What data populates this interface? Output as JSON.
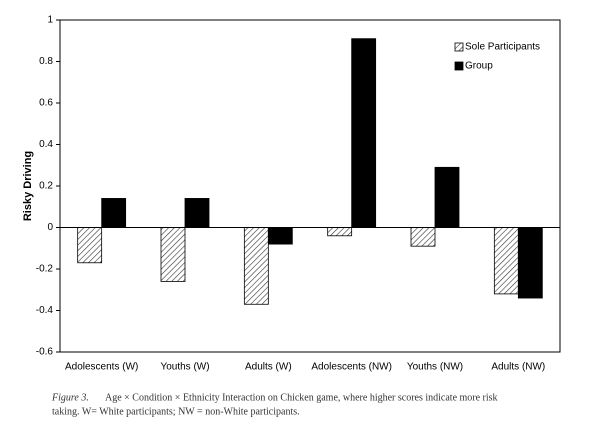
{
  "chart_data": {
    "type": "bar",
    "y_label": "Risky Driving",
    "categories": [
      "Adolescents (W)",
      "Youths (W)",
      "Adults (W)",
      "Adolescents (NW)",
      "Youths (NW)",
      "Adults (NW)"
    ],
    "series": [
      {
        "name": "Sole Participants",
        "color": "hatched",
        "values": [
          -0.17,
          -0.26,
          -0.37,
          -0.04,
          -0.09,
          -0.32
        ]
      },
      {
        "name": "Group",
        "color": "#000000",
        "values": [
          0.14,
          0.14,
          -0.08,
          0.91,
          0.29,
          -0.34
        ]
      }
    ],
    "ylim": [
      -0.6,
      1
    ],
    "yticks": [
      -0.6,
      -0.4,
      -0.2,
      0,
      0.2,
      0.4,
      0.6,
      0.8,
      1
    ],
    "legend": "top-right",
    "caption_label": "Figure 3.",
    "caption_line1": "Age × Condition × Ethnicity Interaction on Chicken game, where higher scores indicate more risk",
    "caption_line2": "taking. W= White participants; NW = non-White participants."
  }
}
